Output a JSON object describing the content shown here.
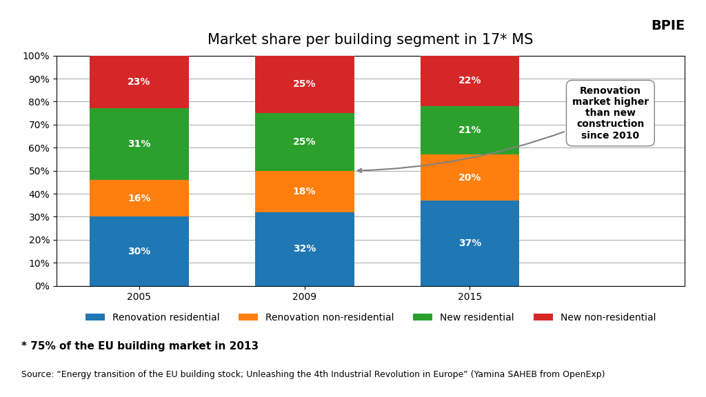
{
  "chart_data": {
    "type": "bar",
    "stacked": true,
    "title": "Market share per building segment in 17* MS",
    "categories": [
      "2005",
      "2009",
      "2015"
    ],
    "series": [
      {
        "name": "Renovation residential",
        "values": [
          30,
          32,
          37
        ],
        "value_labels": [
          "30%",
          "32%",
          "37%"
        ]
      },
      {
        "name": "Renovation non-residential",
        "values": [
          16,
          18,
          20
        ],
        "value_labels": [
          "16%",
          "18%",
          "20%"
        ]
      },
      {
        "name": "New residential",
        "values": [
          31,
          25,
          21
        ],
        "value_labels": [
          "31%",
          "25%",
          "21%"
        ]
      },
      {
        "name": "New non-residential",
        "values": [
          23,
          25,
          22
        ],
        "value_labels": [
          "23%",
          "25%",
          "22%"
        ]
      }
    ],
    "ylim": [
      0,
      100
    ],
    "yticks": [
      {
        "value": 0,
        "label": "0%"
      },
      {
        "value": 10,
        "label": "10%"
      },
      {
        "value": 20,
        "label": "20%"
      },
      {
        "value": 30,
        "label": "30%"
      },
      {
        "value": 40,
        "label": "40%"
      },
      {
        "value": 50,
        "label": "50%"
      },
      {
        "value": 60,
        "label": "60%"
      },
      {
        "value": 70,
        "label": "70%"
      },
      {
        "value": 80,
        "label": "80%"
      },
      {
        "value": 90,
        "label": "90%"
      },
      {
        "value": 100,
        "label": "100%"
      }
    ],
    "grid": true,
    "legend": "upper center",
    "data_labels": true,
    "annotations": [
      "Renovation\nmarket higher\nthan new\nconstruction\nsince 2010",
      "BPIE"
    ],
    "footnote": "* 75% of the EU building market in 2013",
    "source": "Source: “Energy transition of the EU building stock; Unleashing the 4th Industrial Revolution in Europe” (Yamina SAHEB from OpenExp)"
  }
}
